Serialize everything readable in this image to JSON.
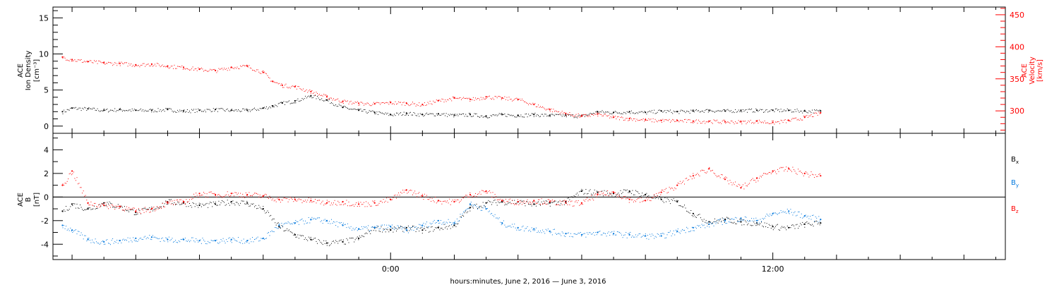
{
  "chart_data": [
    {
      "type": "scatter",
      "panel": "top",
      "left_axis_label": [
        "ACE",
        "Ion Density",
        "[cm⁻³]"
      ],
      "right_axis_label": [
        "ACE",
        "Velocity",
        "[km/s]"
      ],
      "ylim_left": [
        -1,
        16.5
      ],
      "yticks_left": [
        0,
        5,
        10,
        15
      ],
      "ylim_right": [
        265,
        462
      ],
      "yticks_right": [
        300,
        350,
        400,
        450
      ],
      "right_axis_color": "#ff0000",
      "series": [
        {
          "axis": "left",
          "color": "#000000",
          "x_hours": [
            -10.3,
            -10,
            -9.5,
            -9,
            -8.5,
            -8,
            -7.5,
            -7,
            -6.5,
            -6,
            -5.5,
            -5,
            -4.5,
            -4,
            -3.7,
            -3.4,
            -3,
            -2.5,
            -2,
            -1.5,
            -1,
            -0.5,
            0,
            0.5,
            1,
            1.5,
            2,
            2.5,
            3,
            3.5,
            4,
            4.5,
            5,
            5.5,
            6,
            6.5,
            7,
            7.5,
            8,
            8.5,
            9,
            9.5,
            10,
            10.5,
            11,
            11.5,
            12,
            12.5,
            13,
            13.5
          ],
          "values": [
            2.0,
            2.5,
            2.4,
            2.2,
            2.3,
            2.2,
            2.2,
            2.3,
            2.1,
            2.2,
            2.3,
            2.2,
            2.2,
            2.5,
            2.8,
            3.2,
            3.5,
            4.2,
            3.6,
            2.6,
            2.2,
            1.9,
            1.6,
            1.8,
            1.6,
            1.7,
            1.5,
            1.6,
            1.4,
            1.6,
            1.5,
            1.6,
            1.5,
            1.5,
            1.4,
            2.0,
            1.9,
            2.0,
            1.9,
            2.1,
            2.0,
            2.1,
            2.2,
            2.1,
            2.2,
            2.2,
            2.2,
            2.2,
            2.1,
            2.1
          ]
        },
        {
          "axis": "right",
          "color": "#ff0000",
          "x_hours": [
            -10.3,
            -10,
            -9.5,
            -9,
            -8.5,
            -8,
            -7.5,
            -7,
            -6.5,
            -6,
            -5.5,
            -5,
            -4.5,
            -4,
            -3.7,
            -3.4,
            -3,
            -2.5,
            -2,
            -1.5,
            -1,
            -0.5,
            0,
            0.5,
            1,
            1.5,
            2,
            2.5,
            3,
            3.5,
            4,
            4.5,
            5,
            5.5,
            6,
            6.5,
            7,
            7.5,
            8,
            8.5,
            9,
            9.5,
            10,
            10.5,
            11,
            11.5,
            12,
            12.5,
            13,
            13.5
          ],
          "values": [
            384,
            380,
            377,
            375,
            374,
            372,
            373,
            370,
            368,
            365,
            363,
            368,
            370,
            360,
            346,
            340,
            338,
            330,
            322,
            315,
            312,
            311,
            313,
            312,
            310,
            316,
            320,
            318,
            322,
            320,
            318,
            310,
            302,
            296,
            292,
            295,
            290,
            288,
            286,
            285,
            285,
            284,
            284,
            283,
            283,
            284,
            282,
            285,
            290,
            297
          ]
        }
      ]
    },
    {
      "type": "scatter",
      "panel": "bottom",
      "left_axis_label": [
        "ACE",
        "B",
        "[nT]"
      ],
      "ylim": [
        -5.3,
        5.4
      ],
      "yticks": [
        -4,
        -2,
        0,
        2,
        4
      ],
      "zero_line": true,
      "series": [
        {
          "name": "Bx",
          "color": "#000000",
          "x_hours": [
            -10.3,
            -10,
            -9.5,
            -9,
            -8.5,
            -8,
            -7.5,
            -7,
            -6.5,
            -6,
            -5.5,
            -5,
            -4.5,
            -4,
            -3.5,
            -3,
            -2.5,
            -2,
            -1.5,
            -1,
            -0.5,
            0,
            0.5,
            1,
            1.5,
            2,
            2.5,
            3,
            3.5,
            4,
            4.5,
            5,
            5.5,
            6,
            6.5,
            7,
            7.5,
            8,
            8.5,
            9,
            9.5,
            10,
            10.5,
            11,
            11.5,
            12,
            12.5,
            13,
            13.5
          ],
          "values": [
            -1.2,
            -0.6,
            -1.0,
            -0.5,
            -0.8,
            -1.3,
            -1.0,
            -0.4,
            -0.5,
            -0.7,
            -0.6,
            -0.4,
            -0.5,
            -1.0,
            -2.5,
            -3.2,
            -3.6,
            -3.9,
            -3.8,
            -3.5,
            -2.6,
            -2.8,
            -2.6,
            -2.8,
            -2.6,
            -2.4,
            -0.9,
            -0.5,
            -0.4,
            -0.4,
            -0.6,
            -0.5,
            -0.4,
            0.5,
            0.4,
            0.3,
            0.5,
            0.2,
            -0.2,
            -0.4,
            -1.4,
            -2.1,
            -1.9,
            -2.1,
            -2.2,
            -2.5,
            -2.6,
            -2.3,
            -2.2
          ]
        },
        {
          "name": "By",
          "color": "#0077dd",
          "x_hours": [
            -10.3,
            -10,
            -9.5,
            -9,
            -8.5,
            -8,
            -7.5,
            -7,
            -6.5,
            -6,
            -5.5,
            -5,
            -4.5,
            -4,
            -3.5,
            -3,
            -2.5,
            -2,
            -1.5,
            -1,
            -0.5,
            0,
            0.5,
            1,
            1.5,
            2,
            2.5,
            3,
            3.5,
            4,
            4.5,
            5,
            5.5,
            6,
            6.5,
            7,
            7.5,
            8,
            8.5,
            9,
            9.5,
            10,
            10.5,
            11,
            11.5,
            12,
            12.5,
            13,
            13.5
          ],
          "values": [
            -2.4,
            -2.8,
            -3.6,
            -3.8,
            -3.7,
            -3.5,
            -3.4,
            -3.6,
            -3.6,
            -3.7,
            -3.7,
            -3.6,
            -3.7,
            -3.5,
            -2.4,
            -2.2,
            -1.9,
            -2.0,
            -2.4,
            -2.7,
            -2.6,
            -2.5,
            -2.8,
            -2.4,
            -2.0,
            -2.2,
            -0.6,
            -1.0,
            -2.2,
            -2.6,
            -2.7,
            -2.9,
            -3.1,
            -3.2,
            -3.0,
            -3.1,
            -3.2,
            -3.3,
            -3.3,
            -2.9,
            -2.6,
            -2.3,
            -2.0,
            -1.8,
            -2.0,
            -1.4,
            -1.2,
            -1.6,
            -1.9
          ]
        },
        {
          "name": "Bz",
          "color": "#ff0000",
          "x_hours": [
            -10.3,
            -10,
            -9.5,
            -9,
            -8.5,
            -8,
            -7.5,
            -7,
            -6.5,
            -6,
            -5.5,
            -5,
            -4.5,
            -4,
            -3.5,
            -3,
            -2.5,
            -2,
            -1.5,
            -1,
            -0.5,
            0,
            0.5,
            1,
            1.5,
            2,
            2.5,
            3,
            3.5,
            4,
            4.5,
            5,
            5.5,
            6,
            6.5,
            7,
            7.5,
            8,
            8.5,
            9,
            9.5,
            10,
            10.5,
            11,
            11.5,
            12,
            12.5,
            13,
            13.5
          ],
          "values": [
            1.0,
            2.2,
            -0.5,
            -0.7,
            -0.8,
            -1.2,
            -1.0,
            -0.5,
            -0.4,
            0.3,
            0.2,
            0.3,
            0.2,
            0.1,
            -0.2,
            -0.2,
            -0.3,
            -0.5,
            -0.4,
            -0.6,
            -0.5,
            -0.2,
            0.6,
            0.1,
            -0.3,
            -0.4,
            0.2,
            0.5,
            -0.3,
            -0.4,
            -0.3,
            -0.4,
            -0.5,
            -0.5,
            0.2,
            0.4,
            -0.2,
            -0.3,
            0.4,
            1.0,
            1.8,
            2.4,
            1.5,
            0.8,
            1.6,
            2.2,
            2.4,
            2.0,
            1.8
          ]
        }
      ]
    }
  ],
  "x_axis": {
    "title": "hours:minutes,  June  2, 2016 — June  3, 2016",
    "range_hours": [
      -10.6,
      19.3
    ],
    "major_ticks": [
      0,
      12
    ],
    "tick_labels": [
      "0:00",
      "12:00"
    ]
  },
  "legend": [
    {
      "base": "B",
      "sub": "x",
      "color": "#000000"
    },
    {
      "base": "B",
      "sub": "y",
      "color": "#0077dd"
    },
    {
      "base": "B",
      "sub": "z",
      "color": "#ff0000"
    }
  ]
}
